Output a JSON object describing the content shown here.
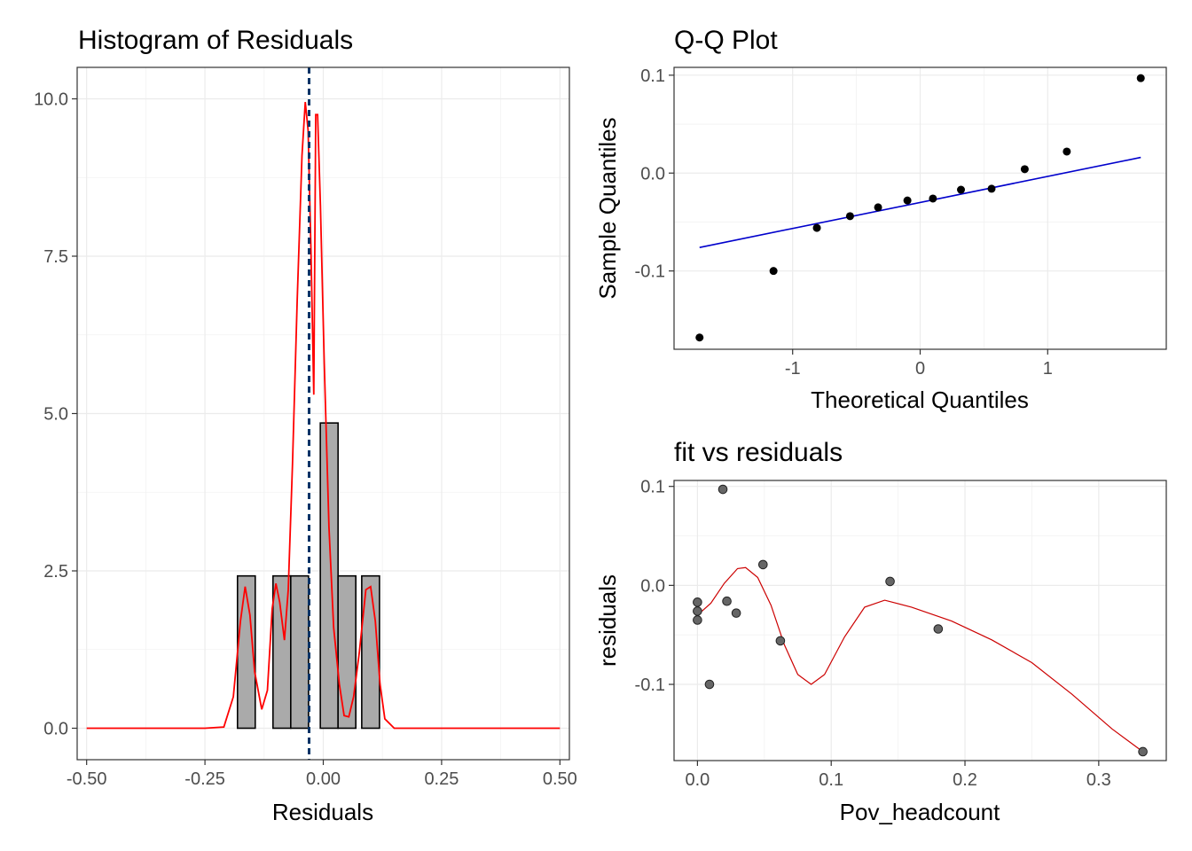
{
  "chart_data": [
    {
      "type": "bar",
      "title": "Histogram of Residuals",
      "xlabel": "Residuals",
      "ylabel": "",
      "xlim": [
        -0.52,
        0.52
      ],
      "ylim": [
        -0.5,
        10.5
      ],
      "x_ticks": [
        {
          "value": -0.5,
          "label": "-0.50"
        },
        {
          "value": -0.25,
          "label": "-0.25"
        },
        {
          "value": 0.0,
          "label": "0.00"
        },
        {
          "value": 0.25,
          "label": "0.25"
        },
        {
          "value": 0.5,
          "label": "0.50"
        }
      ],
      "y_ticks": [
        {
          "value": 0.0,
          "label": "0.0"
        },
        {
          "value": 2.5,
          "label": "2.5"
        },
        {
          "value": 5.0,
          "label": "5.0"
        },
        {
          "value": 7.5,
          "label": "7.5"
        },
        {
          "value": 10.0,
          "label": "10.0"
        }
      ],
      "bin_width": 0.0375,
      "bars": [
        {
          "x": -0.1625,
          "value": 2.42
        },
        {
          "x": -0.125,
          "value": 0.0
        },
        {
          "x": -0.0875,
          "value": 2.42
        },
        {
          "x": -0.05,
          "value": 2.42
        },
        {
          "x": -0.0125,
          "value": 0.0
        },
        {
          "x": 0.0125,
          "value": 4.85
        },
        {
          "x": 0.05,
          "value": 2.42
        },
        {
          "x": 0.0875,
          "value": 0.0
        },
        {
          "x": 0.1,
          "value": 2.42
        }
      ],
      "density_points": [
        [
          -0.5,
          0.0
        ],
        [
          -0.25,
          0.0
        ],
        [
          -0.21,
          0.02
        ],
        [
          -0.19,
          0.5
        ],
        [
          -0.175,
          1.7
        ],
        [
          -0.165,
          2.25
        ],
        [
          -0.155,
          1.8
        ],
        [
          -0.145,
          0.9
        ],
        [
          -0.13,
          0.3
        ],
        [
          -0.118,
          0.6
        ],
        [
          -0.108,
          1.9
        ],
        [
          -0.1,
          2.3
        ],
        [
          -0.092,
          2.0
        ],
        [
          -0.082,
          1.4
        ],
        [
          -0.074,
          2.2
        ],
        [
          -0.065,
          4.2
        ],
        [
          -0.055,
          6.8
        ],
        [
          -0.045,
          9.1
        ],
        [
          -0.038,
          9.95
        ],
        [
          -0.032,
          9.5
        ],
        [
          -0.026,
          7.6
        ],
        [
          -0.02,
          5.3
        ],
        [
          -0.016,
          9.75
        ],
        [
          -0.012,
          9.75
        ],
        [
          -0.006,
          8.3
        ],
        [
          0.002,
          5.8
        ],
        [
          0.012,
          3.2
        ],
        [
          0.022,
          1.6
        ],
        [
          0.034,
          0.7
        ],
        [
          0.044,
          0.2
        ],
        [
          0.054,
          0.18
        ],
        [
          0.064,
          0.5
        ],
        [
          0.076,
          1.2
        ],
        [
          0.09,
          2.2
        ],
        [
          0.1,
          2.25
        ],
        [
          0.11,
          1.7
        ],
        [
          0.12,
          0.7
        ],
        [
          0.13,
          0.15
        ],
        [
          0.15,
          0.0
        ],
        [
          0.25,
          0.0
        ],
        [
          0.5,
          0.0
        ]
      ],
      "vline": -0.03,
      "colors": {
        "bar_fill": "#aaaaaa",
        "bar_stroke": "#000000",
        "density": "#ff0000",
        "vline": "#003366"
      }
    },
    {
      "type": "scatter",
      "title": "Q-Q Plot",
      "xlabel": "Theoretical Quantiles",
      "ylabel": "Sample Quantiles",
      "xlim": [
        -1.93,
        1.93
      ],
      "ylim": [
        -0.18,
        0.108
      ],
      "x_ticks": [
        {
          "value": -1,
          "label": "-1"
        },
        {
          "value": 0,
          "label": "0"
        },
        {
          "value": 1,
          "label": "1"
        }
      ],
      "y_ticks": [
        {
          "value": -0.1,
          "label": "-0.1"
        },
        {
          "value": 0.0,
          "label": "0.0"
        },
        {
          "value": 0.1,
          "label": "0.1"
        }
      ],
      "points": [
        [
          -1.73,
          -0.168
        ],
        [
          -1.15,
          -0.1
        ],
        [
          -0.81,
          -0.056
        ],
        [
          -0.55,
          -0.044
        ],
        [
          -0.33,
          -0.035
        ],
        [
          -0.1,
          -0.028
        ],
        [
          0.1,
          -0.026
        ],
        [
          0.32,
          -0.017
        ],
        [
          0.56,
          -0.016
        ],
        [
          0.82,
          0.004
        ],
        [
          1.15,
          0.022
        ],
        [
          1.73,
          0.097
        ]
      ],
      "line": [
        [
          -1.73,
          -0.076
        ],
        [
          1.73,
          0.016
        ]
      ],
      "colors": {
        "points": "#000000",
        "line": "#0000cc"
      }
    },
    {
      "type": "scatter",
      "title": "fit vs residuals",
      "xlabel": "Pov_headcount",
      "ylabel": "residuals",
      "xlim": [
        -0.0175,
        0.3505
      ],
      "ylim": [
        -0.177,
        0.106
      ],
      "x_ticks": [
        {
          "value": 0.0,
          "label": "0.0"
        },
        {
          "value": 0.1,
          "label": "0.1"
        },
        {
          "value": 0.2,
          "label": "0.2"
        },
        {
          "value": 0.3,
          "label": "0.3"
        }
      ],
      "y_ticks": [
        {
          "value": -0.1,
          "label": "-0.1"
        },
        {
          "value": 0.0,
          "label": "0.0"
        },
        {
          "value": 0.1,
          "label": "0.1"
        }
      ],
      "points": [
        [
          0.0,
          -0.017
        ],
        [
          0.0,
          -0.026
        ],
        [
          0.0,
          -0.035
        ],
        [
          0.009,
          -0.1
        ],
        [
          0.019,
          0.097
        ],
        [
          0.022,
          -0.016
        ],
        [
          0.029,
          -0.028
        ],
        [
          0.049,
          0.021
        ],
        [
          0.062,
          -0.056
        ],
        [
          0.144,
          0.004
        ],
        [
          0.18,
          -0.044
        ],
        [
          0.333,
          -0.168
        ]
      ],
      "smooth": [
        [
          0.0,
          -0.03
        ],
        [
          0.01,
          -0.018
        ],
        [
          0.02,
          0.002
        ],
        [
          0.03,
          0.017
        ],
        [
          0.036,
          0.018
        ],
        [
          0.045,
          0.008
        ],
        [
          0.055,
          -0.02
        ],
        [
          0.065,
          -0.06
        ],
        [
          0.075,
          -0.09
        ],
        [
          0.085,
          -0.1
        ],
        [
          0.095,
          -0.09
        ],
        [
          0.11,
          -0.052
        ],
        [
          0.125,
          -0.022
        ],
        [
          0.14,
          -0.015
        ],
        [
          0.16,
          -0.022
        ],
        [
          0.19,
          -0.036
        ],
        [
          0.22,
          -0.055
        ],
        [
          0.25,
          -0.078
        ],
        [
          0.28,
          -0.11
        ],
        [
          0.31,
          -0.145
        ],
        [
          0.333,
          -0.168
        ]
      ],
      "colors": {
        "points": "#666666",
        "smooth": "#cc0000"
      }
    }
  ]
}
